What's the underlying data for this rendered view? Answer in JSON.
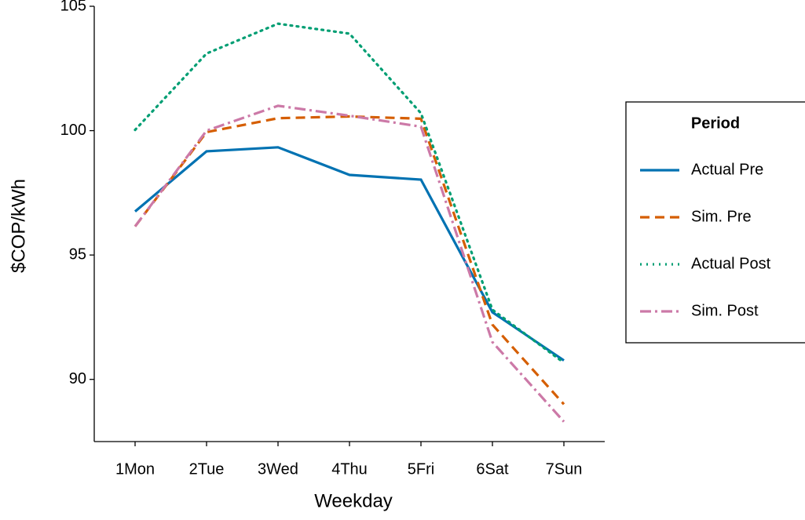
{
  "chart_data": {
    "type": "line",
    "x_label": "Weekday",
    "y_label": "$COP/kWh",
    "categories": [
      "1Mon",
      "2Tue",
      "3Wed",
      "4Thu",
      "5Fri",
      "6Sat",
      "7Sun"
    ],
    "series": [
      {
        "name": "Actual Pre",
        "color": "#0072b2",
        "line_style": "solid",
        "values": [
          96.75,
          99.17,
          99.33,
          98.22,
          98.03,
          92.7,
          90.76
        ]
      },
      {
        "name": "Sim. Pre",
        "color": "#d55e00",
        "line_style": "dash",
        "values": [
          96.15,
          99.94,
          100.5,
          100.57,
          100.48,
          92.2,
          89.0
        ]
      },
      {
        "name": "Actual Post",
        "color": "#009e73",
        "line_style": "dot",
        "values": [
          100.03,
          103.1,
          104.3,
          103.9,
          100.7,
          92.8,
          90.67
        ]
      },
      {
        "name": "Sim. Post",
        "color": "#cc79a7",
        "line_style": "dashdot",
        "values": [
          96.15,
          100.0,
          101.0,
          100.6,
          100.16,
          91.5,
          88.3
        ]
      }
    ],
    "ylim": [
      87.5,
      105
    ],
    "yticks": [
      90,
      95,
      100,
      105
    ],
    "legend_title": "Period",
    "legend_position": "right",
    "grid": false
  }
}
